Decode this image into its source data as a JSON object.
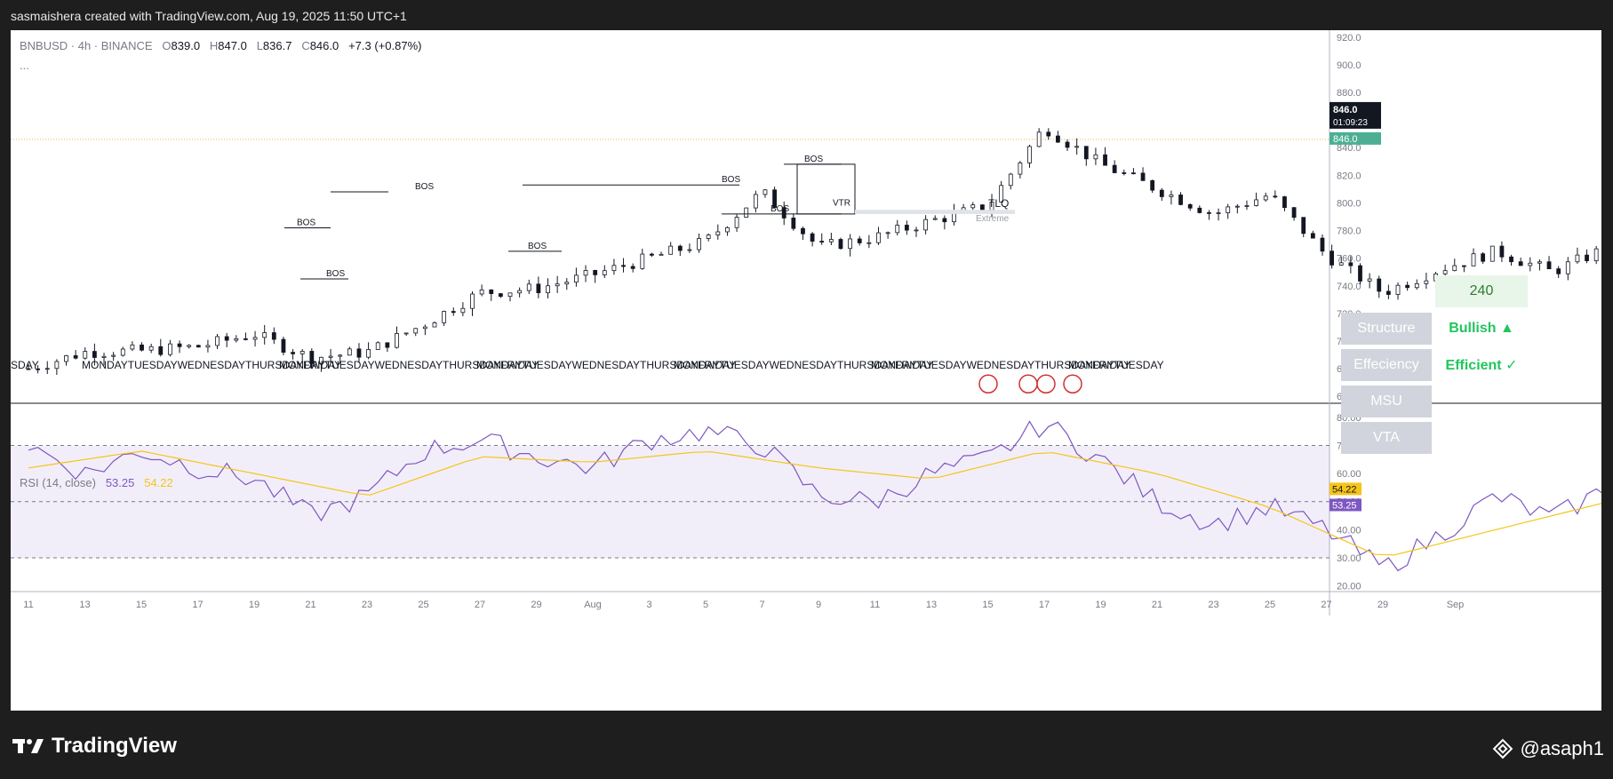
{
  "header": {
    "title": "sasmaishera created with TradingView.com, Aug 19, 2025 11:50 UTC+1"
  },
  "legend": {
    "symbol": "BNBUSD · 4h · BINANCE",
    "o_label": "O",
    "o_value": "839.0",
    "h_label": "H",
    "h_value": "847.0",
    "l_label": "L",
    "l_value": "836.7",
    "c_label": "C",
    "c_value": "846.0",
    "change": "+7.3 (+0.87%)",
    "more": "..."
  },
  "rsi_legend": {
    "label": "RSI (14, close)",
    "rsi_value": "53.25",
    "ma_value": "54.22"
  },
  "price_badge": {
    "price": "846.0",
    "countdown": "01:09:23",
    "last": "846.0"
  },
  "rsi_badges": {
    "ma": "54.22",
    "rsi": "53.25"
  },
  "panel": {
    "count": "240",
    "rows": [
      {
        "label": "Structure",
        "value": "Bullish ▲"
      },
      {
        "label": "Effeciency",
        "value": "Efficient ✓"
      },
      {
        "label": "MSU",
        "value": ""
      },
      {
        "label": "VTA",
        "value": ""
      }
    ]
  },
  "annotations": {
    "bos": "BOS",
    "vtr": "VTR",
    "tlq": "TLQ",
    "extreme": "Extreme",
    "day_labels": [
      "SDAY",
      "MONDAYTUESDAYWEDNESDAYTHURSDAYFRIDAY",
      "MONDAYTUESDAYWEDNESDAYTHURSDAYFRIDAY",
      "MONDAYTUESDAYWEDNESDAYTHURSDAYFRIDAY",
      "MONDAYTUESDAYWEDNESDAYTHURSDAYFRIDAY",
      "MONDAYTUESDAYWEDNESDAYTHURSDAYFRIDAY",
      "MONDAYTUESDAY"
    ]
  },
  "chart_data": [
    {
      "type": "candlestick",
      "title": "BNBUSD · 4h · BINANCE",
      "ylim": [
        655,
        925
      ],
      "y_ticks": [
        "920.0",
        "900.0",
        "880.0",
        "860.0",
        "840.0",
        "820.0",
        "800.0",
        "780.0",
        "760.0",
        "740.0",
        "720.0",
        "700.0",
        "680.0",
        "660.0"
      ],
      "x_ticks": [
        "11",
        "13",
        "15",
        "17",
        "19",
        "21",
        "23",
        "25",
        "27",
        "29",
        "Aug",
        "3",
        "5",
        "7",
        "9",
        "11",
        "13",
        "15",
        "17",
        "19",
        "21",
        "23",
        "25",
        "27",
        "29",
        "Sep"
      ],
      "anchors_close": [
        [
          "Jul 10",
          680
        ],
        [
          "Jul 11",
          692
        ],
        [
          "Jul 12",
          693
        ],
        [
          "Jul 13",
          696
        ],
        [
          "Jul 14",
          705
        ],
        [
          "Jul 15",
          688
        ],
        [
          "Jul 16",
          692
        ],
        [
          "Jul 17",
          712
        ],
        [
          "Jul 18",
          735
        ],
        [
          "Jul 19",
          738
        ],
        [
          "Jul 20",
          748
        ],
        [
          "Jul 21",
          760
        ],
        [
          "Jul 22",
          772
        ],
        [
          "Jul 23",
          808
        ],
        [
          "Jul 24",
          768
        ],
        [
          "Jul 25",
          775
        ],
        [
          "Jul 26",
          787
        ],
        [
          "Jul 27",
          798
        ],
        [
          "Jul 28",
          855
        ],
        [
          "Jul 29",
          828
        ],
        [
          "Jul 30",
          810
        ],
        [
          "Jul 31",
          792
        ],
        [
          "Aug 1",
          806
        ],
        [
          "Aug 2",
          762
        ],
        [
          "Aug 3",
          735
        ],
        [
          "Aug 4",
          752
        ],
        [
          "Aug 5",
          765
        ],
        [
          "Aug 6",
          750
        ],
        [
          "Aug 7",
          768
        ],
        [
          "Aug 8",
          785
        ],
        [
          "Aug 9",
          800
        ],
        [
          "Aug 10",
          808
        ],
        [
          "Aug 11",
          815
        ],
        [
          "Aug 12",
          808
        ],
        [
          "Aug 13",
          858
        ],
        [
          "Aug 14",
          855
        ],
        [
          "Aug 15",
          830
        ],
        [
          "Aug 16",
          838
        ],
        [
          "Aug 17",
          852
        ],
        [
          "Aug 18",
          835
        ],
        [
          "Aug 19",
          846
        ]
      ],
      "last": {
        "open": 839.0,
        "high": 847.0,
        "low": 836.7,
        "close": 846.0
      }
    },
    {
      "type": "line",
      "title": "RSI (14, close)",
      "ylim": [
        18,
        85
      ],
      "y_ticks": [
        "80.00",
        "70.00",
        "60.00",
        "50.00",
        "40.00",
        "30.00",
        "20.00"
      ],
      "band": [
        30,
        70
      ],
      "series": [
        {
          "name": "RSI",
          "color": "#7e57c2",
          "anchors": [
            [
              "Jul 10",
              70
            ],
            [
              "Jul 11",
              60
            ],
            [
              "Jul 12",
              68
            ],
            [
              "Jul 13",
              62
            ],
            [
              "Jul 14",
              58
            ],
            [
              "Jul 15",
              45
            ],
            [
              "Jul 16",
              52
            ],
            [
              "Jul 17",
              68
            ],
            [
              "Jul 18",
              72
            ],
            [
              "Jul 19",
              66
            ],
            [
              "Jul 20",
              62
            ],
            [
              "Jul 21",
              72
            ],
            [
              "Jul 22",
              75
            ],
            [
              "Jul 23",
              70
            ],
            [
              "Jul 24",
              52
            ],
            [
              "Jul 25",
              50
            ],
            [
              "Jul 26",
              60
            ],
            [
              "Jul 27",
              65
            ],
            [
              "Jul 28",
              78
            ],
            [
              "Jul 29",
              65
            ],
            [
              "Jul 30",
              50
            ],
            [
              "Jul 31",
              42
            ],
            [
              "Aug 1",
              48
            ],
            [
              "Aug 2",
              40
            ],
            [
              "Aug 3",
              26
            ],
            [
              "Aug 4",
              38
            ],
            [
              "Aug 5",
              52
            ],
            [
              "Aug 6",
              44
            ],
            [
              "Aug 7",
              55
            ],
            [
              "Aug 8",
              62
            ],
            [
              "Aug 9",
              70
            ],
            [
              "Aug 10",
              68
            ],
            [
              "Aug 11",
              58
            ],
            [
              "Aug 12",
              62
            ],
            [
              "Aug 13",
              72
            ],
            [
              "Aug 14",
              62
            ],
            [
              "Aug 15",
              48
            ],
            [
              "Aug 16",
              52
            ],
            [
              "Aug 17",
              64
            ],
            [
              "Aug 18",
              48
            ],
            [
              "Aug 19",
              53.25
            ]
          ]
        },
        {
          "name": "RSI-based MA",
          "color": "#f5c518",
          "anchors": [
            [
              "Jul 10",
              62
            ],
            [
              "Jul 12",
              68
            ],
            [
              "Jul 14",
              60
            ],
            [
              "Jul 16",
              52
            ],
            [
              "Jul 18",
              66
            ],
            [
              "Jul 20",
              64
            ],
            [
              "Jul 22",
              68
            ],
            [
              "Jul 24",
              62
            ],
            [
              "Jul 26",
              58
            ],
            [
              "Jul 28",
              68
            ],
            [
              "Jul 30",
              60
            ],
            [
              "Aug 1",
              48
            ],
            [
              "Aug 3",
              30
            ],
            [
              "Aug 5",
              40
            ],
            [
              "Aug 7",
              50
            ],
            [
              "Aug 9",
              62
            ],
            [
              "Aug 11",
              66
            ],
            [
              "Aug 13",
              62
            ],
            [
              "Aug 15",
              60
            ],
            [
              "Aug 17",
              54
            ],
            [
              "Aug 19",
              54.22
            ]
          ]
        }
      ]
    }
  ]
}
